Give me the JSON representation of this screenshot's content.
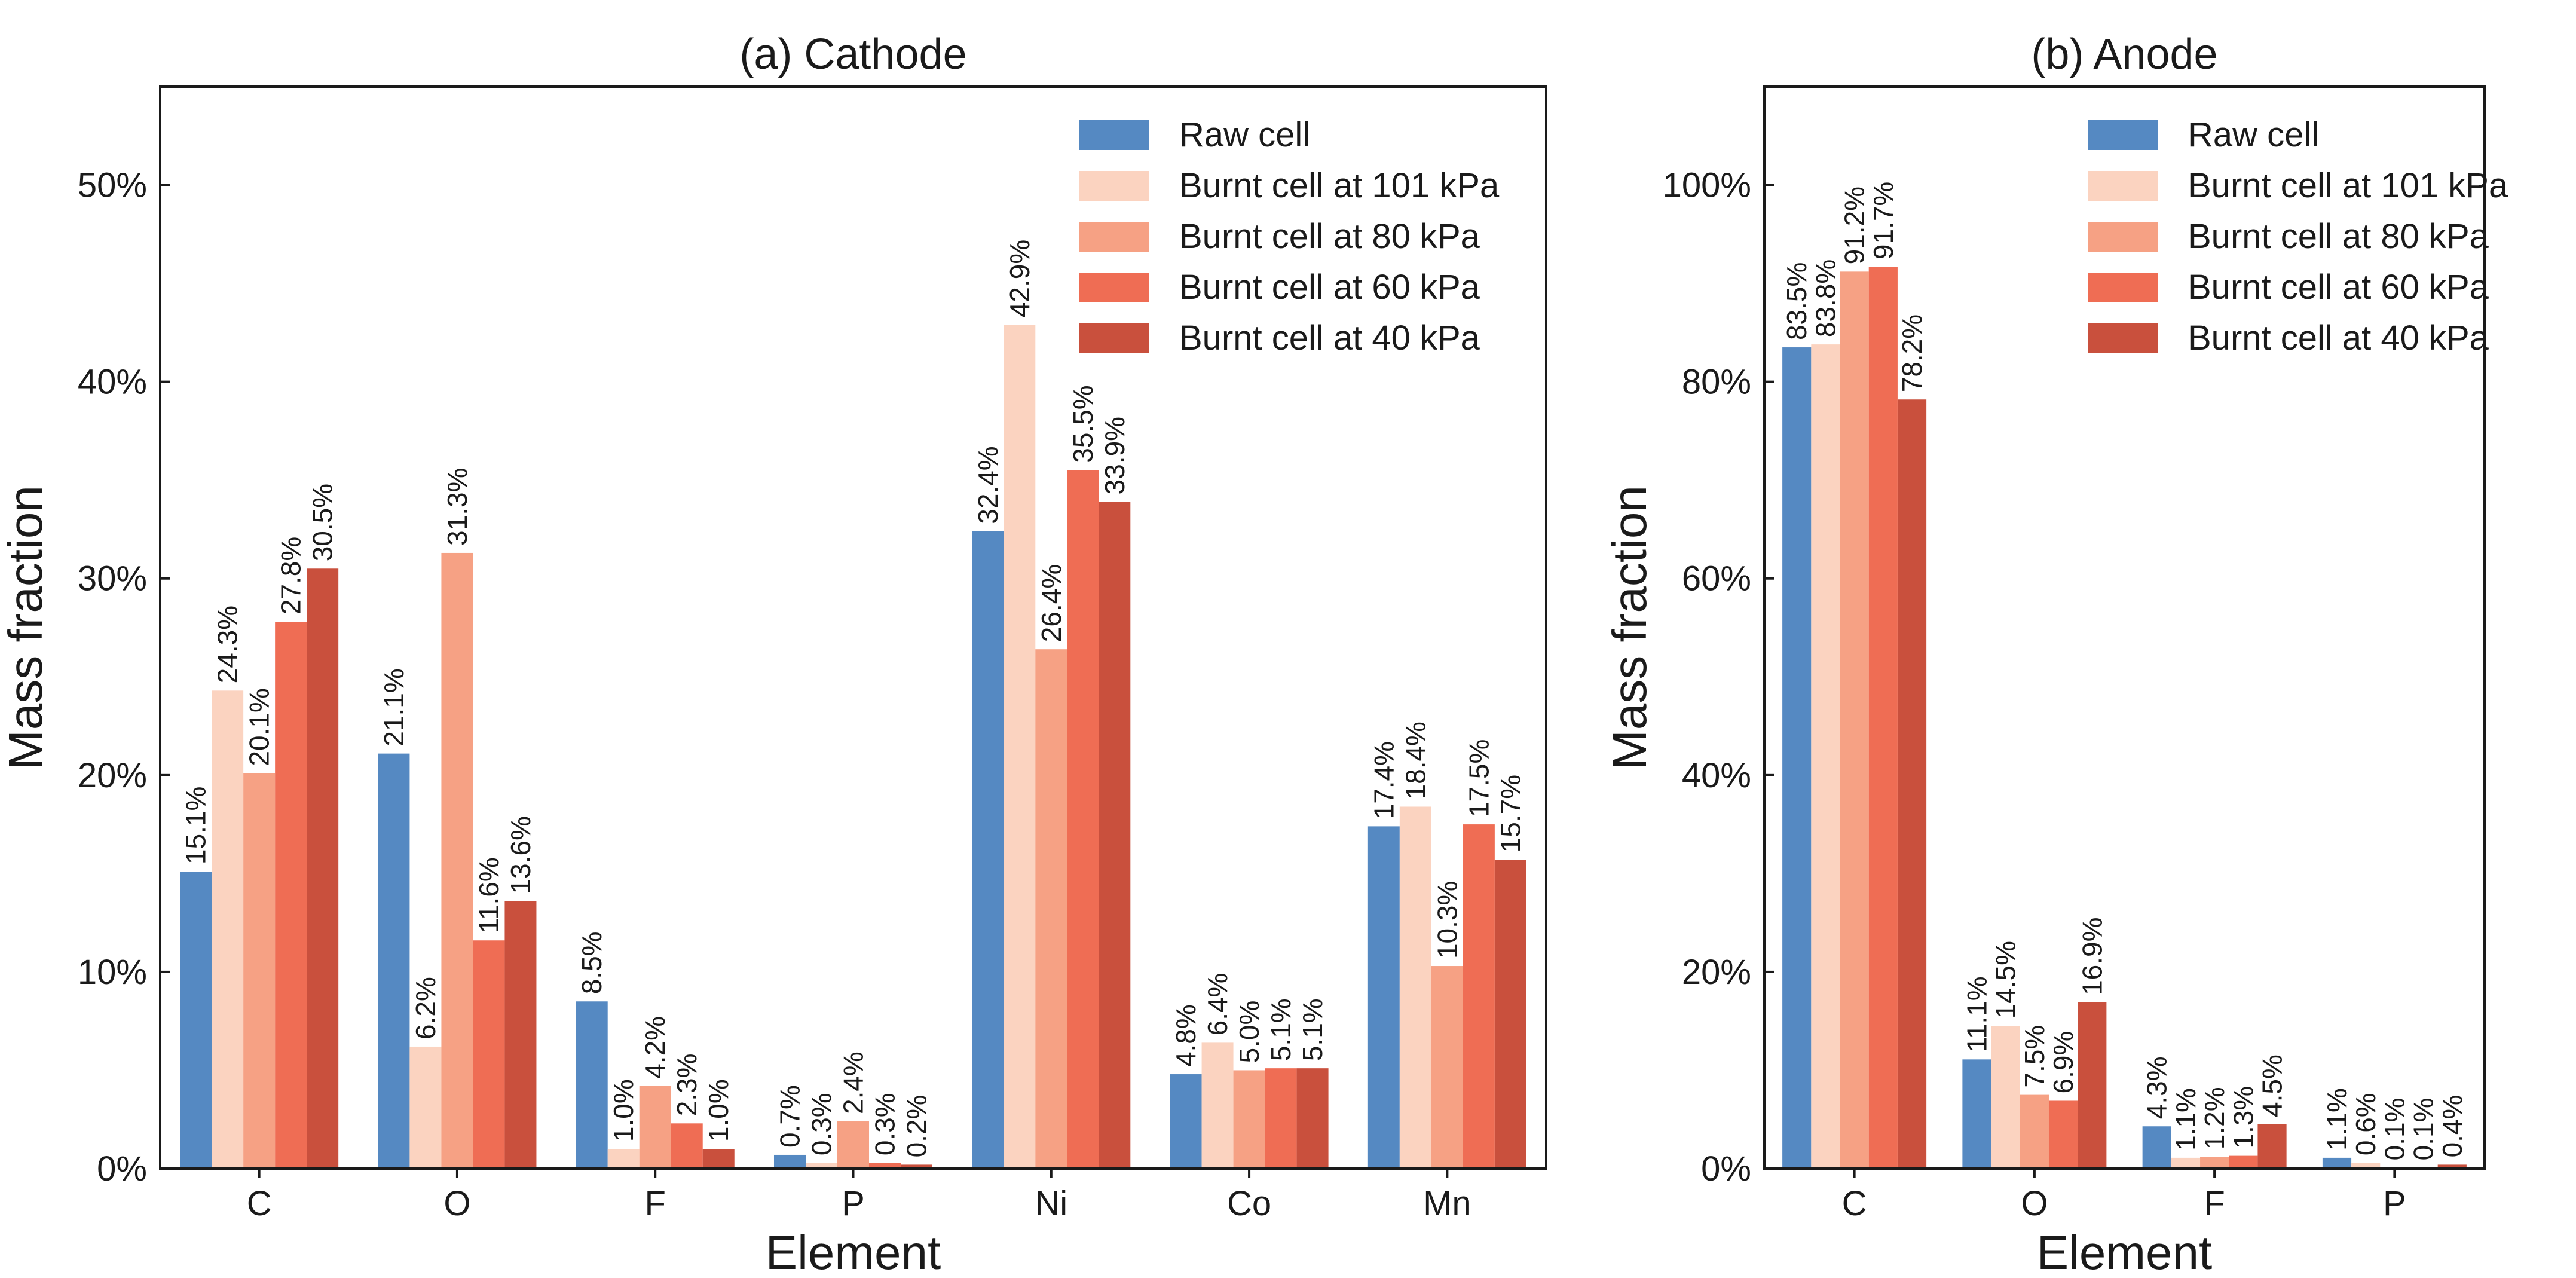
{
  "chart_data": [
    {
      "type": "bar",
      "title": "(a) Cathode",
      "xlabel": "Element",
      "ylabel": "Mass fraction",
      "ylim": [
        0,
        55
      ],
      "yticks": [
        0,
        10,
        20,
        30,
        40,
        50
      ],
      "ytick_labels": [
        "0%",
        "10%",
        "20%",
        "30%",
        "40%",
        "50%"
      ],
      "categories": [
        "C",
        "O",
        "F",
        "P",
        "Ni",
        "Co",
        "Mn"
      ],
      "legend_position": "top-right",
      "series": [
        {
          "name": "Raw cell",
          "color": "#5589c2",
          "values": [
            15.1,
            21.1,
            8.5,
            0.7,
            32.4,
            4.8,
            17.4
          ],
          "labels": [
            "15.1%",
            "21.1%",
            "8.5%",
            "0.7%",
            "32.4%",
            "4.8%",
            "17.4%"
          ]
        },
        {
          "name": "Burnt cell at 101 kPa",
          "color": "#fbd3c0",
          "values": [
            24.3,
            6.2,
            1.0,
            0.3,
            42.9,
            6.4,
            18.4
          ],
          "labels": [
            "24.3%",
            "6.2%",
            "1.0%",
            "0.3%",
            "42.9%",
            "6.4%",
            "18.4%"
          ]
        },
        {
          "name": "Burnt cell at 80 kPa",
          "color": "#f6a184",
          "values": [
            20.1,
            31.3,
            4.2,
            2.4,
            26.4,
            5.0,
            10.3
          ],
          "labels": [
            "20.1%",
            "31.3%",
            "4.2%",
            "2.4%",
            "26.4%",
            "5.0%",
            "10.3%"
          ]
        },
        {
          "name": "Burnt cell at 60 kPa",
          "color": "#ef6d54",
          "values": [
            27.8,
            11.6,
            2.3,
            0.3,
            35.5,
            5.1,
            17.5
          ],
          "labels": [
            "27.8%",
            "11.6%",
            "2.3%",
            "0.3%",
            "35.5%",
            "5.1%",
            "17.5%"
          ]
        },
        {
          "name": "Burnt cell at 40 kPa",
          "color": "#c9503d",
          "values": [
            30.5,
            13.6,
            1.0,
            0.2,
            33.9,
            5.1,
            15.7
          ],
          "labels": [
            "30.5%",
            "13.6%",
            "1.0%",
            "0.2%",
            "33.9%",
            "5.1%",
            "15.7%"
          ]
        }
      ]
    },
    {
      "type": "bar",
      "title": "(b) Anode",
      "xlabel": "Element",
      "ylabel": "Mass fraction",
      "ylim": [
        0,
        110
      ],
      "yticks": [
        0,
        20,
        40,
        60,
        80,
        100
      ],
      "ytick_labels": [
        "0%",
        "20%",
        "40%",
        "60%",
        "80%",
        "100%"
      ],
      "categories": [
        "C",
        "O",
        "F",
        "P"
      ],
      "legend_position": "top-right",
      "series": [
        {
          "name": "Raw cell",
          "color": "#5589c2",
          "values": [
            83.5,
            11.1,
            4.3,
            1.1
          ],
          "labels": [
            "83.5%",
            "11.1%",
            "4.3%",
            "1.1%"
          ]
        },
        {
          "name": "Burnt cell at 101 kPa",
          "color": "#fbd3c0",
          "values": [
            83.8,
            14.5,
            1.1,
            0.6
          ],
          "labels": [
            "83.8%",
            "14.5%",
            "1.1%",
            "0.6%"
          ]
        },
        {
          "name": "Burnt cell at 80 kPa",
          "color": "#f6a184",
          "values": [
            91.2,
            7.5,
            1.2,
            0.1
          ],
          "labels": [
            "91.2%",
            "7.5%",
            "1.2%",
            "0.1%"
          ]
        },
        {
          "name": "Burnt cell at 60 kPa",
          "color": "#ef6d54",
          "values": [
            91.7,
            6.9,
            1.3,
            0.1
          ],
          "labels": [
            "91.7%",
            "6.9%",
            "1.3%",
            "0.1%"
          ]
        },
        {
          "name": "Burnt cell at 40 kPa",
          "color": "#c9503d",
          "values": [
            78.2,
            16.9,
            4.5,
            0.4
          ],
          "labels": [
            "78.2%",
            "16.9%",
            "4.5%",
            "0.4%"
          ]
        }
      ]
    }
  ]
}
